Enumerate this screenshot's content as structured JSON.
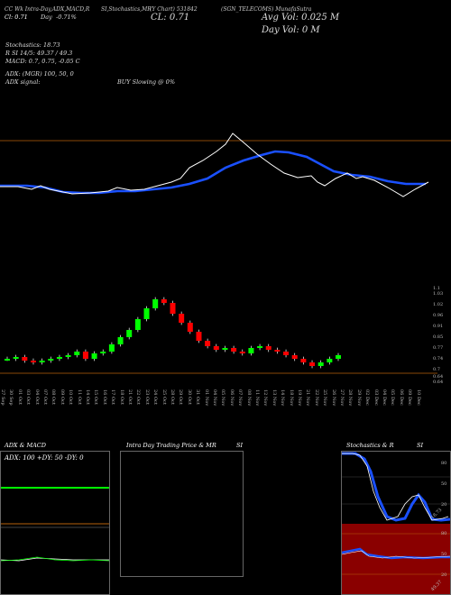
{
  "header": {
    "line1_left": "CC Wk Intra-Day,ADX,MACD,R",
    "line1_mid": "SI,Stochastics,MR",
    "line1_mid2": "(Y Chart) 531842",
    "line1_right": "(SGN_TELECOMS) MunafaSutra",
    "line2_left": "Cl: 0.71",
    "day_label": "Day",
    "day_change": "-0.71%",
    "close_big": "CL: 0.71",
    "avg_vol": "Avg Vol: 0.025 M",
    "day_vol": "Day Vol: 0   M"
  },
  "indicators": {
    "stochastics": "Stochastics: 18.73",
    "rsi": "R        SI 14/5: 49.37 / 49.3",
    "macd": "MACD: 0.7, 0.75, -0.05 C",
    "adx": "ADX:                         (MGR) 100, 50, 0",
    "adx_signal": "ADX  signal:",
    "buy_signal": "BUY Slowing @ 0%"
  },
  "price_ticks": [
    "1.1",
    "1.03",
    "1.02",
    "0.96",
    "0.91",
    "0.85",
    "0.77",
    "0.74",
    "0.7",
    "0.64",
    "0.64"
  ],
  "dates": [
    "27 Sep",
    "30 Sep",
    "01 Oct",
    "03 Oct",
    "04 Oct",
    "07 Oct",
    "08 Oct",
    "09 Oct",
    "10 Oct",
    "11 Oct",
    "14 Oct",
    "15 Oct",
    "16 Oct",
    "17 Oct",
    "18 Oct",
    "21 Oct",
    "22 Oct",
    "23 Oct",
    "24 Oct",
    "25 Oct",
    "28 Oct",
    "29 Oct",
    "30 Oct",
    "31 Oct",
    "01 Nov",
    "04 Nov",
    "05 Nov",
    "06 Nov",
    "07 Nov",
    "08 Nov",
    "11 Nov",
    "12 Nov",
    "13 Nov",
    "14 Nov",
    "18 Nov",
    "19 Nov",
    "21 Nov",
    "22 Nov",
    "25 Nov",
    "26 Nov",
    "27 Nov",
    "28 Nov",
    "29 Nov",
    "02 Dec",
    "03 Dec",
    "04 Dec",
    "05 Dec",
    "06 Dec",
    "09 Dec",
    "10 Dec"
  ],
  "panels": {
    "adx_macd": {
      "title": "ADX  & MACD",
      "readout": "ADX: 100  +DY: 50  -DY: 0"
    },
    "intraday": {
      "title": "Intra Day Trading Price  & MR",
      "si": "SI"
    },
    "stoch": {
      "title": "Stochastics & R",
      "si": "SI",
      "ticks_top": [
        "80",
        "50",
        "20"
      ],
      "ticks_bottom": [
        "80",
        "50",
        "20"
      ],
      "val_top": "18.73",
      "val_bottom": "49.37"
    }
  },
  "colors": {
    "bg": "#000000",
    "up": "#00ff00",
    "down": "#ff0000",
    "blue": "#1a50ff",
    "orange": "#b8620d"
  },
  "chart_data": {
    "type": "line",
    "title": "",
    "series": [
      {
        "values": [
          0.7,
          0.71,
          0.69,
          0.68,
          0.69,
          0.7,
          0.71,
          0.72,
          0.74,
          0.7,
          0.73,
          0.74,
          0.78,
          0.82,
          0.86,
          0.92,
          0.98,
          1.03,
          1.01,
          0.95,
          0.9,
          0.85,
          0.8,
          0.77,
          0.75,
          0.76,
          0.74,
          0.73,
          0.76,
          0.77,
          0.75,
          0.74,
          0.72,
          0.7,
          0.68,
          0.66,
          0.68,
          0.7,
          0.72
        ]
      }
    ]
  }
}
